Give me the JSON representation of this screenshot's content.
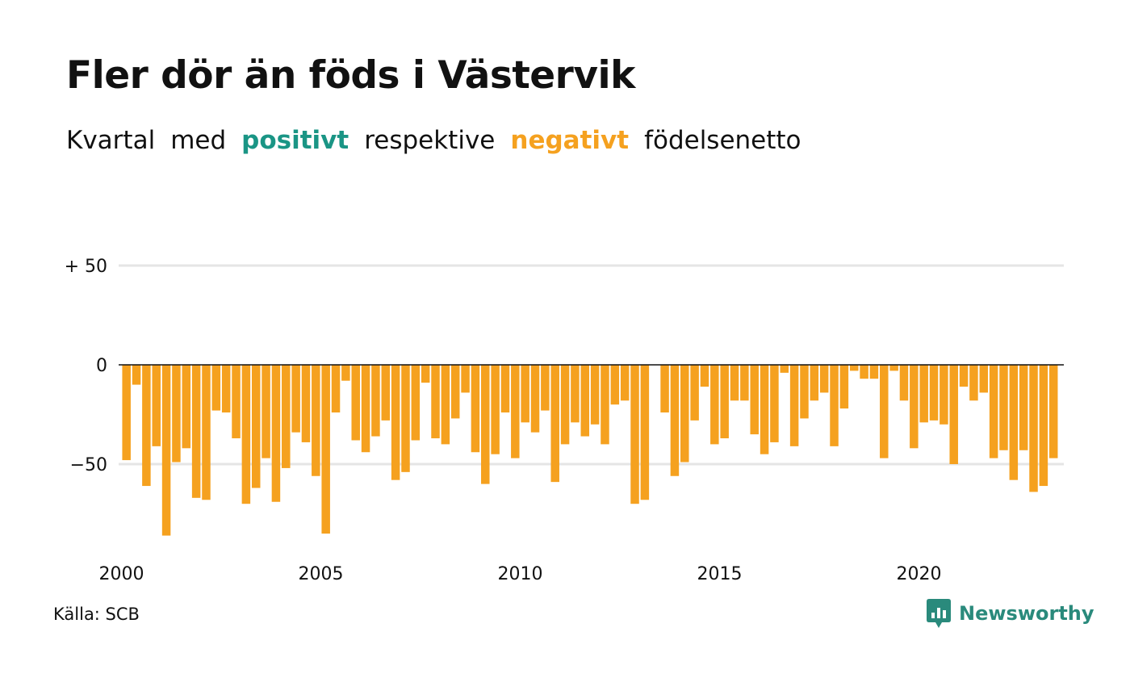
{
  "header": {
    "title": "Fler dör än föds i Västervik",
    "subtitle": {
      "w1": "Kvartal",
      "w2": "med",
      "positive": "positivt",
      "w3": "respektive",
      "negative": "negativt",
      "w4": "födelsenetto"
    }
  },
  "footer": {
    "source": "Källa: SCB",
    "brand": "Newsworthy",
    "brand_icon": "newsworthy-logo-icon"
  },
  "colors": {
    "positive": "#1a9585",
    "negative": "#f5a11f",
    "brand": "#2a8a7c",
    "grid": "#e5e5e5",
    "zero_line": "#111111"
  },
  "chart_data": {
    "type": "bar",
    "title": "Fler dör än föds i Västervik",
    "xlabel": "",
    "ylabel": "",
    "x_tick_labels": [
      "2000",
      "2005",
      "2010",
      "2015",
      "2020"
    ],
    "y_ticks": [
      {
        "value": 50,
        "label": "+ 50"
      },
      {
        "value": 0,
        "label": "0"
      },
      {
        "value": -50,
        "label": "−50"
      }
    ],
    "ylim": [
      -95,
      55
    ],
    "grid": true,
    "start_year": 2000,
    "start_quarter": 1,
    "values": [
      -48,
      -10,
      -61,
      -41,
      -86,
      -49,
      -42,
      -67,
      -68,
      -23,
      -24,
      -37,
      -70,
      -62,
      -47,
      -69,
      -52,
      -34,
      -39,
      -56,
      -85,
      -24,
      -8,
      -38,
      -44,
      -36,
      -28,
      -58,
      -54,
      -38,
      -9,
      -37,
      -40,
      -27,
      -14,
      -44,
      -60,
      -45,
      -24,
      -47,
      -29,
      -34,
      -23,
      -59,
      -40,
      -29,
      -36,
      -30,
      -40,
      -20,
      -18,
      -70,
      -68,
      0,
      -24,
      -56,
      -49,
      -28,
      -11,
      -40,
      -37,
      -18,
      -18,
      -35,
      -45,
      -39,
      -4,
      -41,
      -27,
      -18,
      -14,
      -41,
      -22,
      -3,
      -7,
      -7,
      -47,
      -3,
      -18,
      -42,
      -29,
      -28,
      -30,
      -50,
      -11,
      -18,
      -14,
      -47,
      -43,
      -58,
      -43,
      -64,
      -61,
      -47
    ]
  }
}
